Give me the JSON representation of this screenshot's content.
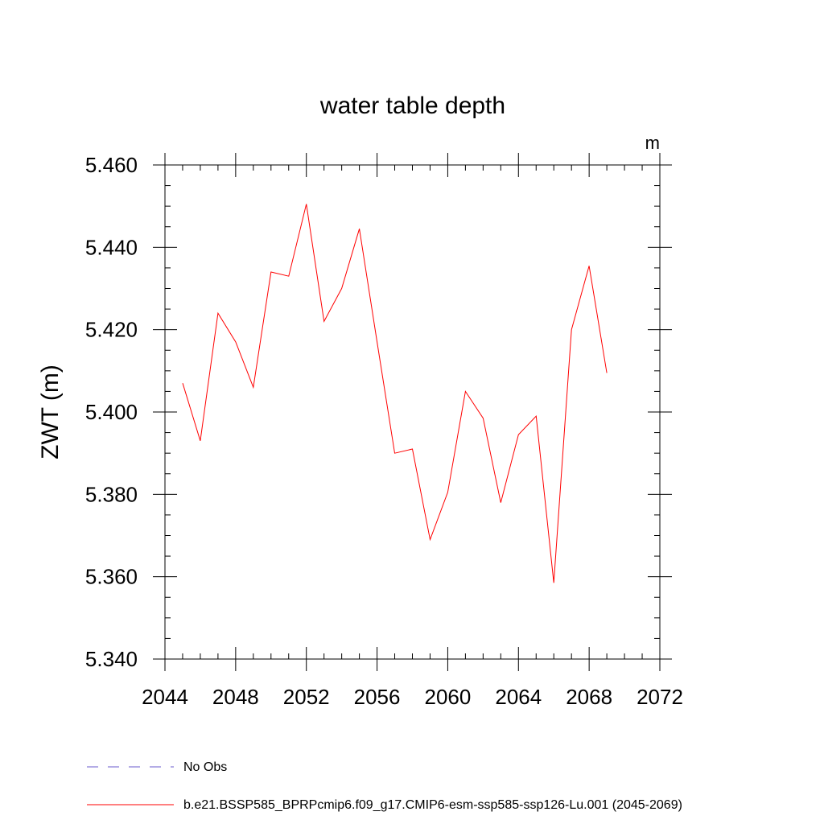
{
  "chart_data": {
    "type": "line",
    "title": "water table depth",
    "units_label": "m",
    "ylabel": "ZWT  (m)",
    "xlabel": "",
    "xlim": [
      2044,
      2072
    ],
    "ylim": [
      5.34,
      5.46
    ],
    "x_ticks": [
      "2044",
      "2048",
      "2052",
      "2056",
      "2060",
      "2064",
      "2068",
      "2072"
    ],
    "y_ticks": [
      "5.340",
      "5.360",
      "5.380",
      "5.400",
      "5.420",
      "5.440",
      "5.460"
    ],
    "grid": false,
    "legend_position": "bottom-left",
    "series": [
      {
        "name": "b.e21.BSSP585_BPRPcmip6.f09_g17.CMIP6-esm-ssp585-ssp126-Lu.001 (2045-2069)",
        "color": "#ff0000",
        "style": "solid",
        "x": [
          2045,
          2046,
          2047,
          2048,
          2049,
          2050,
          2051,
          2052,
          2053,
          2054,
          2055,
          2056,
          2057,
          2058,
          2059,
          2060,
          2061,
          2062,
          2063,
          2064,
          2065,
          2066,
          2067,
          2068,
          2069
        ],
        "y": [
          5.407,
          5.393,
          5.424,
          5.417,
          5.406,
          5.434,
          5.433,
          5.4505,
          5.422,
          5.43,
          5.4445,
          5.417,
          5.39,
          5.391,
          5.369,
          5.3805,
          5.405,
          5.3985,
          5.378,
          5.3945,
          5.399,
          5.3585,
          5.42,
          5.4355,
          5.4095
        ]
      }
    ],
    "legend": [
      {
        "label": "No Obs",
        "color": "#6a5acd",
        "style": "dashed"
      },
      {
        "label": "b.e21.BSSP585_BPRPcmip6.f09_g17.CMIP6-esm-ssp585-ssp126-Lu.001 (2045-2069)",
        "color": "#ff0000",
        "style": "solid"
      }
    ]
  }
}
